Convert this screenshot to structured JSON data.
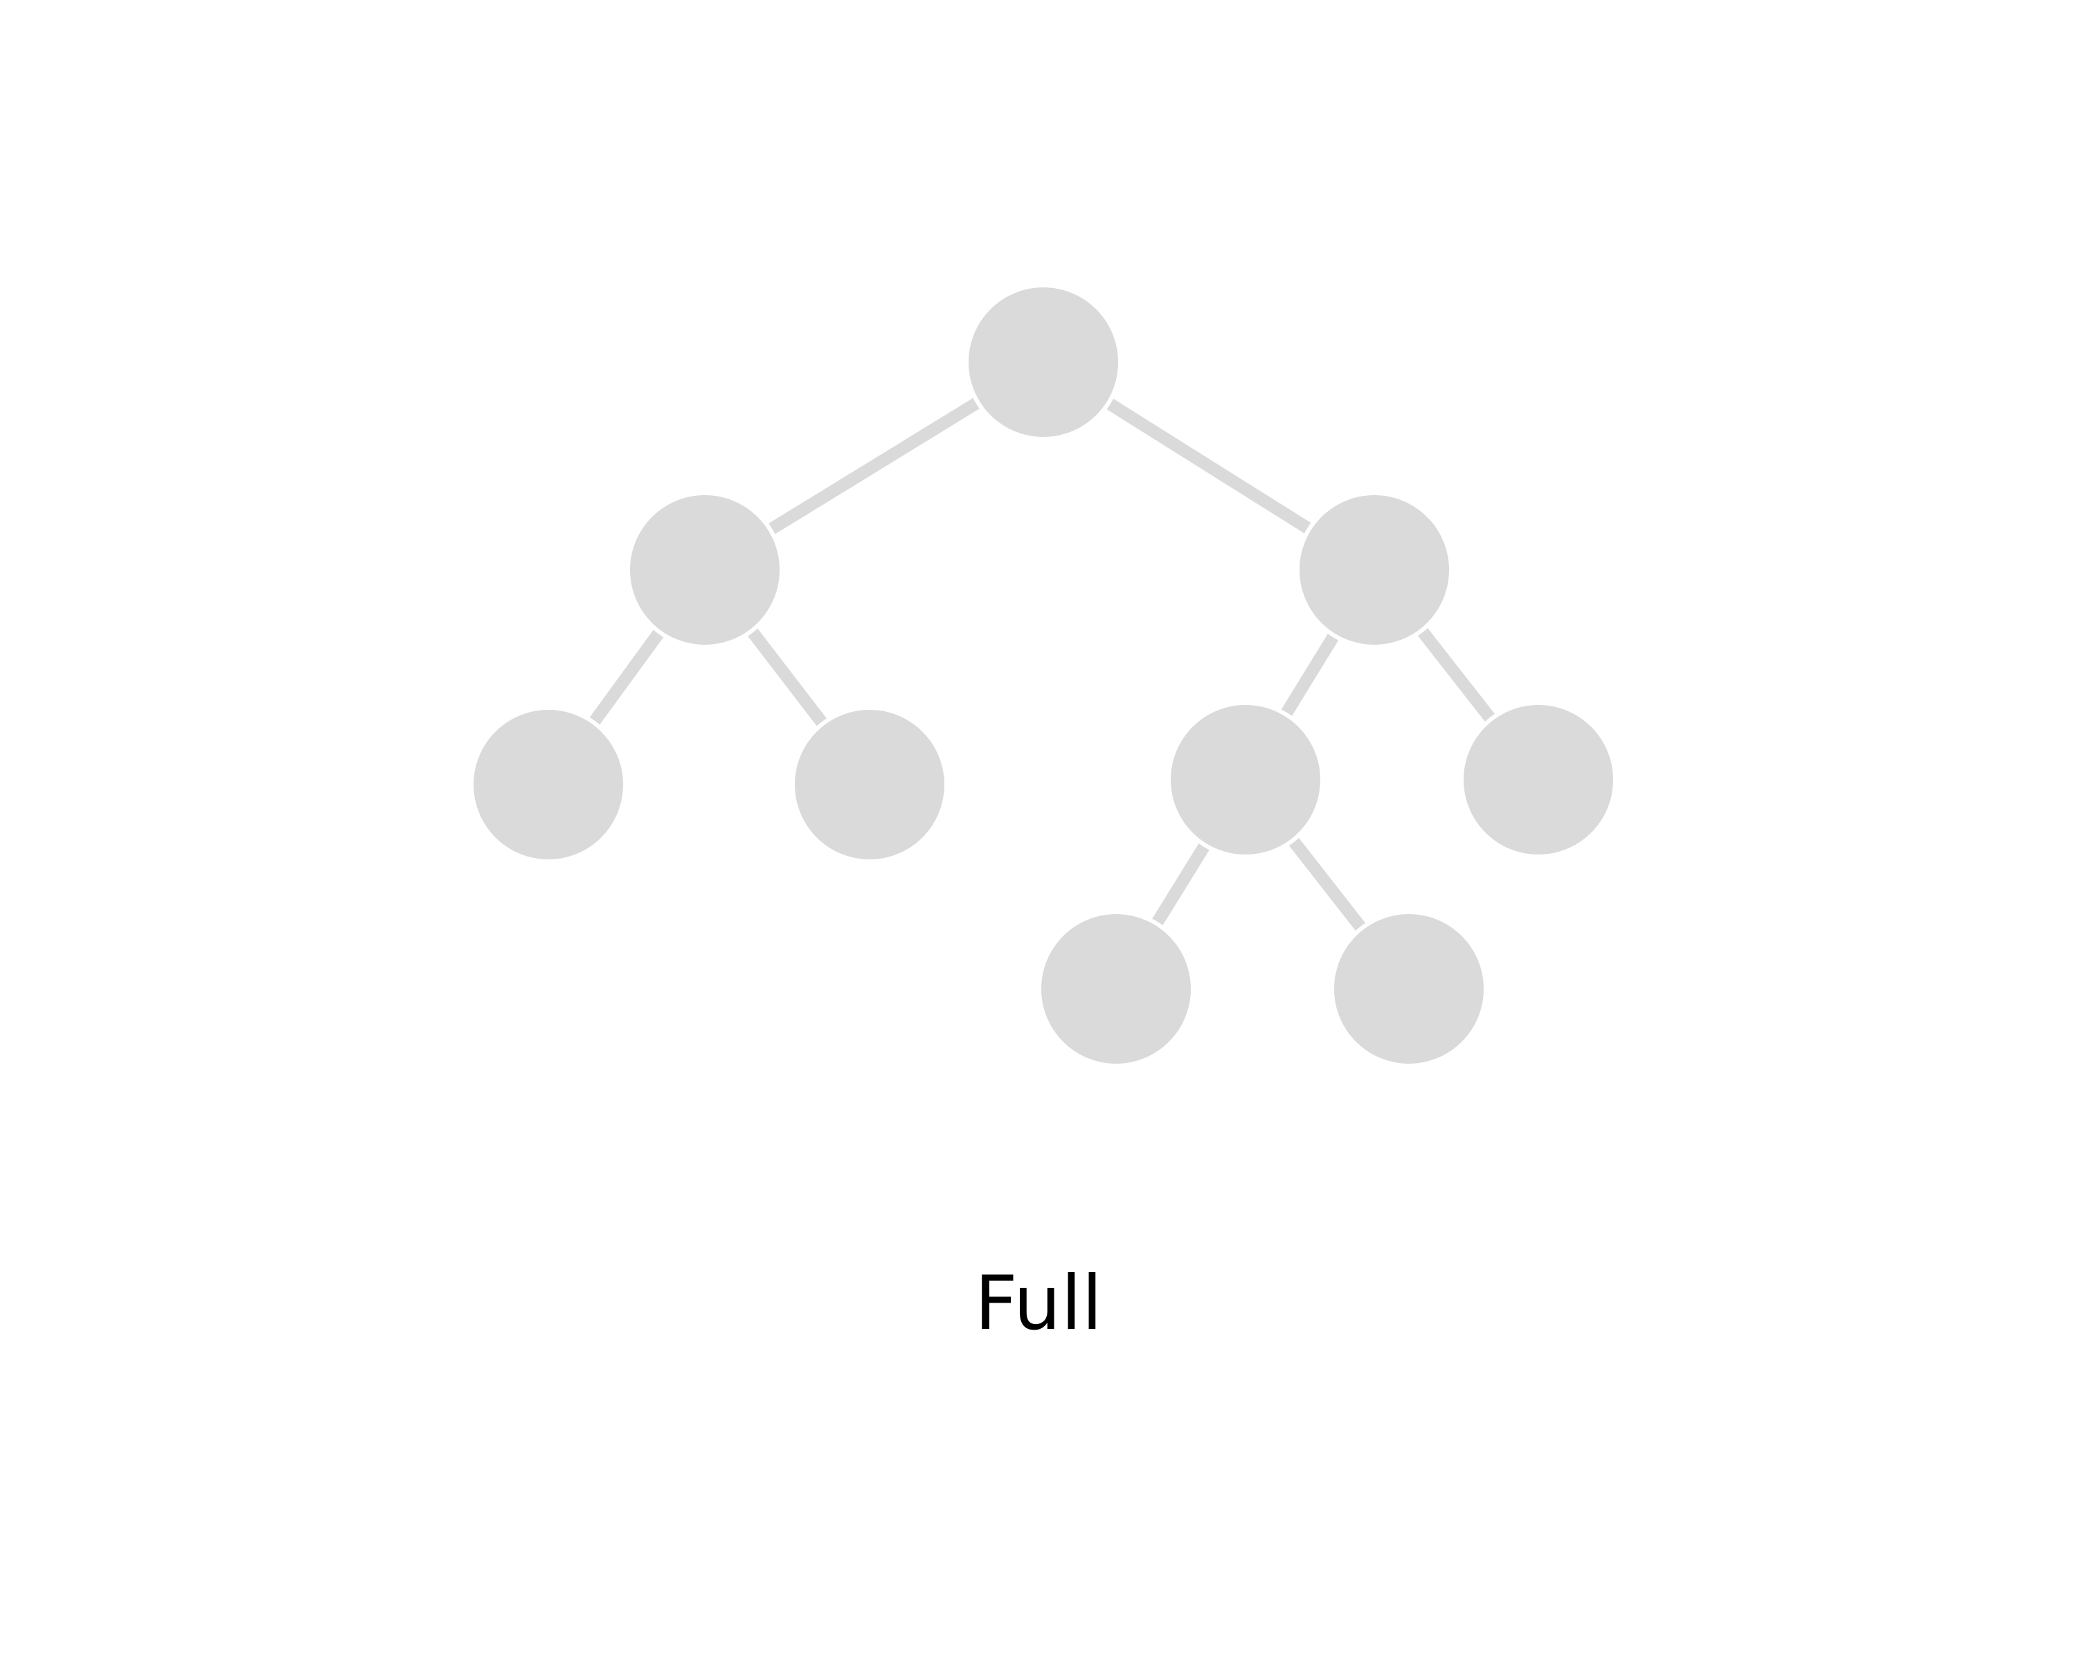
{
  "diagram": {
    "caption": "Full",
    "colors": {
      "node_fill": "#d9dad9",
      "edge_stroke": "#d9dad9",
      "background": "#ffffff"
    },
    "nodes": [
      {
        "id": "root"
      },
      {
        "id": "left"
      },
      {
        "id": "right"
      },
      {
        "id": "left-left"
      },
      {
        "id": "left-right"
      },
      {
        "id": "right-left"
      },
      {
        "id": "right-right"
      },
      {
        "id": "right-left-left"
      },
      {
        "id": "right-left-right"
      }
    ],
    "edges": [
      {
        "from": "root",
        "to": "left"
      },
      {
        "from": "root",
        "to": "right"
      },
      {
        "from": "left",
        "to": "left-left"
      },
      {
        "from": "left",
        "to": "left-right"
      },
      {
        "from": "right",
        "to": "right-left"
      },
      {
        "from": "right",
        "to": "right-right"
      },
      {
        "from": "right-left",
        "to": "right-left-left"
      },
      {
        "from": "right-left",
        "to": "right-left-right"
      }
    ]
  }
}
